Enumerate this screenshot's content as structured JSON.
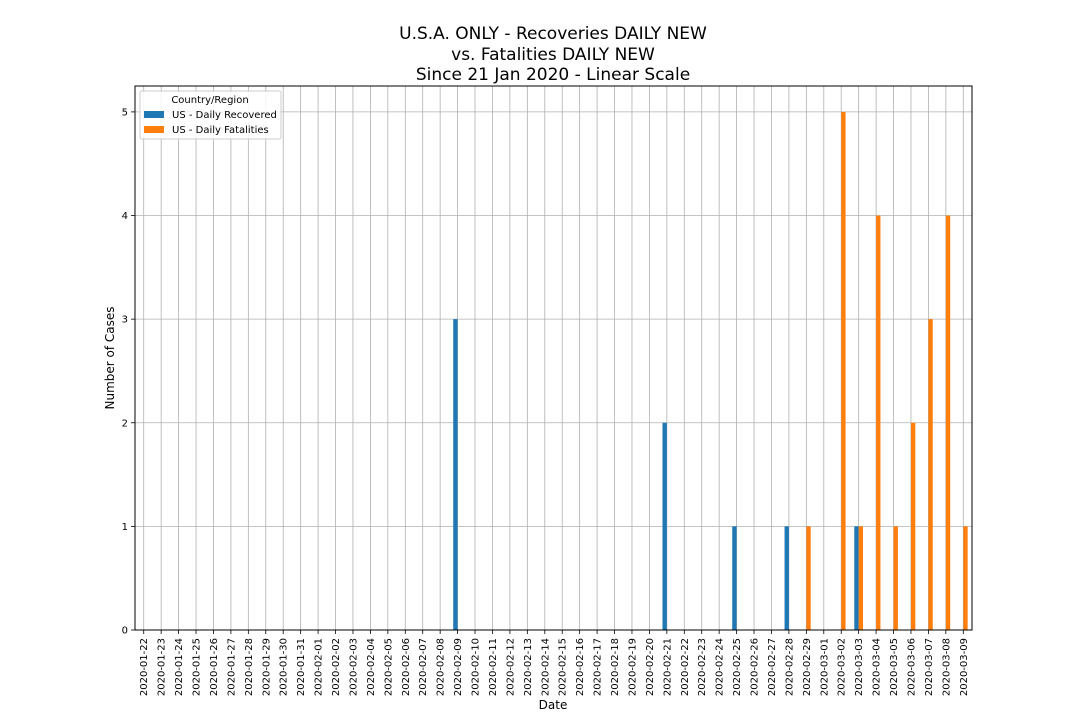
{
  "chart_data": {
    "type": "bar",
    "title_lines": [
      "U.S.A. ONLY - Recoveries DAILY NEW",
      "vs. Fatalities DAILY NEW",
      "Since 21 Jan 2020 - Linear Scale"
    ],
    "xlabel": "Date",
    "ylabel": "Number of Cases",
    "ylim": [
      0,
      5.25
    ],
    "yticks": [
      0,
      1,
      2,
      3,
      4,
      5
    ],
    "grid": true,
    "legend": {
      "title": "Country/Region",
      "placement": "upper-left"
    },
    "categories": [
      "2020-01-22",
      "2020-01-23",
      "2020-01-24",
      "2020-01-25",
      "2020-01-26",
      "2020-01-27",
      "2020-01-28",
      "2020-01-29",
      "2020-01-30",
      "2020-01-31",
      "2020-02-01",
      "2020-02-02",
      "2020-02-03",
      "2020-02-04",
      "2020-02-05",
      "2020-02-06",
      "2020-02-07",
      "2020-02-08",
      "2020-02-09",
      "2020-02-10",
      "2020-02-11",
      "2020-02-12",
      "2020-02-13",
      "2020-02-14",
      "2020-02-15",
      "2020-02-16",
      "2020-02-17",
      "2020-02-18",
      "2020-02-19",
      "2020-02-20",
      "2020-02-21",
      "2020-02-22",
      "2020-02-23",
      "2020-02-24",
      "2020-02-25",
      "2020-02-26",
      "2020-02-27",
      "2020-02-28",
      "2020-02-29",
      "2020-03-01",
      "2020-03-02",
      "2020-03-03",
      "2020-03-04",
      "2020-03-05",
      "2020-03-06",
      "2020-03-07",
      "2020-03-08",
      "2020-03-09"
    ],
    "series": [
      {
        "name": "US - Daily Recovered",
        "color": "#1f77b4",
        "values": [
          0,
          0,
          0,
          0,
          0,
          0,
          0,
          0,
          0,
          0,
          0,
          0,
          0,
          0,
          0,
          0,
          0,
          0,
          3,
          0,
          0,
          0,
          0,
          0,
          0,
          0,
          0,
          0,
          0,
          0,
          2,
          0,
          0,
          0,
          1,
          0,
          0,
          1,
          0,
          0,
          0,
          1,
          0,
          0,
          0,
          0,
          0,
          0
        ]
      },
      {
        "name": "US - Daily Fatalities",
        "color": "#ff7f0e",
        "values": [
          0,
          0,
          0,
          0,
          0,
          0,
          0,
          0,
          0,
          0,
          0,
          0,
          0,
          0,
          0,
          0,
          0,
          0,
          0,
          0,
          0,
          0,
          0,
          0,
          0,
          0,
          0,
          0,
          0,
          0,
          0,
          0,
          0,
          0,
          0,
          0,
          0,
          0,
          1,
          0,
          5,
          1,
          4,
          1,
          2,
          3,
          4,
          1
        ]
      }
    ]
  }
}
